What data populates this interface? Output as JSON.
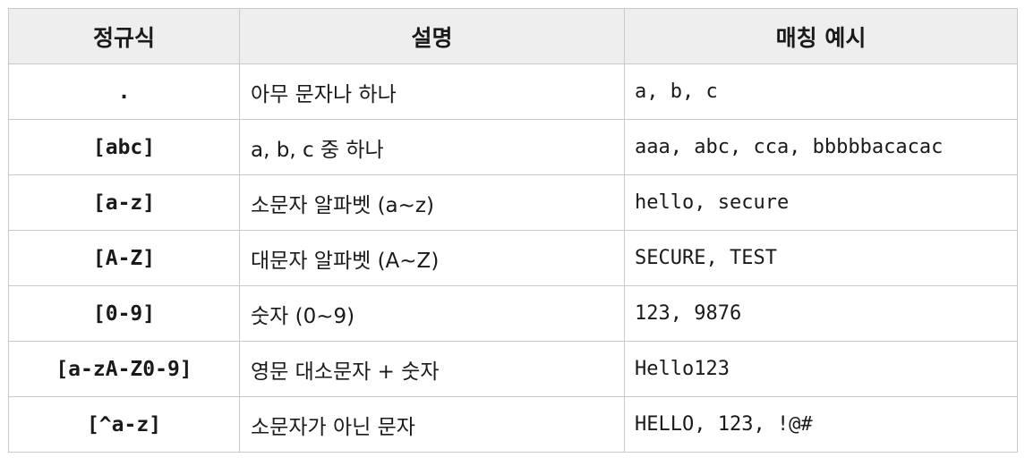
{
  "table": {
    "headers": [
      "정규식",
      "설명",
      "매칭 예시"
    ],
    "rows": [
      {
        "pattern": ".",
        "description": "아무 문자나 하나",
        "example": "a, b, c"
      },
      {
        "pattern": "[abc]",
        "description": "a, b, c 중 하나",
        "example": "aaa, abc, cca, bbbbbacacac"
      },
      {
        "pattern": "[a-z]",
        "description": "소문자 알파벳 (a~z)",
        "example": "hello, secure"
      },
      {
        "pattern": "[A-Z]",
        "description": "대문자 알파벳 (A~Z)",
        "example": "SECURE, TEST"
      },
      {
        "pattern": "[0-9]",
        "description": "숫자 (0~9)",
        "example": "123, 9876"
      },
      {
        "pattern": "[a-zA-Z0-9]",
        "description": "영문 대소문자 + 숫자",
        "example": "Hello123"
      },
      {
        "pattern": "[^a-z]",
        "description": "소문자가 아닌 문자",
        "example": "HELLO, 123, !@#"
      }
    ]
  },
  "colors": {
    "header_background": "#eeeeee",
    "border": "#c9c9c9",
    "text": "#1a1a1a"
  }
}
